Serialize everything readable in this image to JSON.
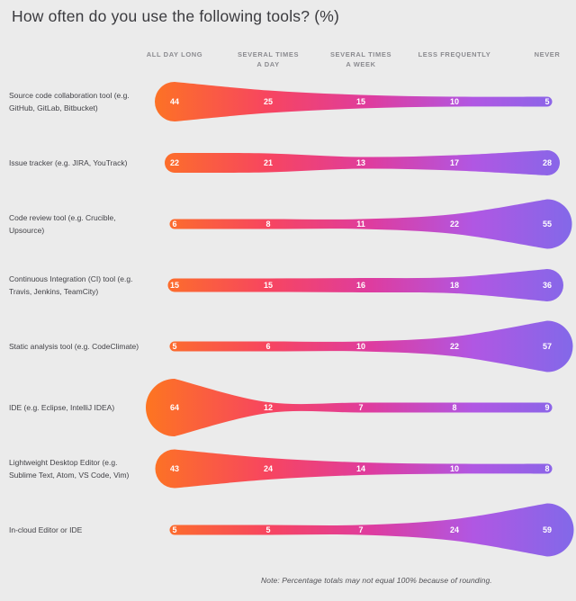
{
  "page": {
    "title": "How often do you use the following tools? (%)",
    "note": "Note: Percentage totals may not equal 100% because of rounding.",
    "background_color": "#EBEBEB"
  },
  "chart_data": {
    "type": "area",
    "variant": "horizontal gradient funnel rows; band thickness encodes percentage",
    "title": "How often do you use the following tools? (%)",
    "value_unit": "%",
    "categories": [
      "ALL DAY LONG",
      "SEVERAL TIMES A DAY",
      "SEVERAL TIMES A WEEK",
      "LESS FREQUENTLY",
      "NEVER"
    ],
    "header_lines": [
      {
        "line1": "ALL DAY LONG",
        "line2": ""
      },
      {
        "line1": "SEVERAL TIMES",
        "line2": "A DAY"
      },
      {
        "line1": "SEVERAL TIMES",
        "line2": "A WEEK"
      },
      {
        "line1": "LESS FREQUENTLY",
        "line2": ""
      },
      {
        "line1": "NEVER",
        "line2": ""
      }
    ],
    "series": [
      {
        "name": "Source code collaboration tool (e.g. GitHub, GitLab, Bitbucket)",
        "values": [
          44,
          25,
          15,
          10,
          5
        ]
      },
      {
        "name": "Issue tracker (e.g. JIRA, YouTrack)",
        "values": [
          22,
          21,
          13,
          17,
          28
        ]
      },
      {
        "name": "Code review tool (e.g. Crucible, Upsource)",
        "values": [
          6,
          8,
          11,
          22,
          55
        ]
      },
      {
        "name": "Continuous Integration (CI) tool (e.g. Travis, Jenkins, TeamCity)",
        "values": [
          15,
          15,
          16,
          18,
          36
        ]
      },
      {
        "name": "Static analysis tool (e.g. CodeClimate)",
        "values": [
          5,
          6,
          10,
          22,
          57
        ]
      },
      {
        "name": "IDE (e.g. Eclipse, IntelliJ IDEA)",
        "values": [
          64,
          12,
          7,
          8,
          9
        ]
      },
      {
        "name": "Lightweight Desktop Editor (e.g. Sublime Text, Atom, VS Code, Vim)",
        "values": [
          43,
          24,
          14,
          10,
          8
        ]
      },
      {
        "name": "In-cloud Editor or IDE",
        "values": [
          5,
          5,
          7,
          24,
          59
        ]
      }
    ],
    "gradient_stops": [
      {
        "offset": 0,
        "color": "#FD7422"
      },
      {
        "offset": 0.28,
        "color": "#F74560"
      },
      {
        "offset": 0.52,
        "color": "#DE3C9F"
      },
      {
        "offset": 0.76,
        "color": "#B057E3"
      },
      {
        "offset": 1,
        "color": "#8169E9"
      }
    ],
    "value_label_color": "#FFFFFF",
    "note": "Note: Percentage totals may not equal 100% because of rounding.",
    "grid": false,
    "legend_position": "top-column-headers"
  }
}
